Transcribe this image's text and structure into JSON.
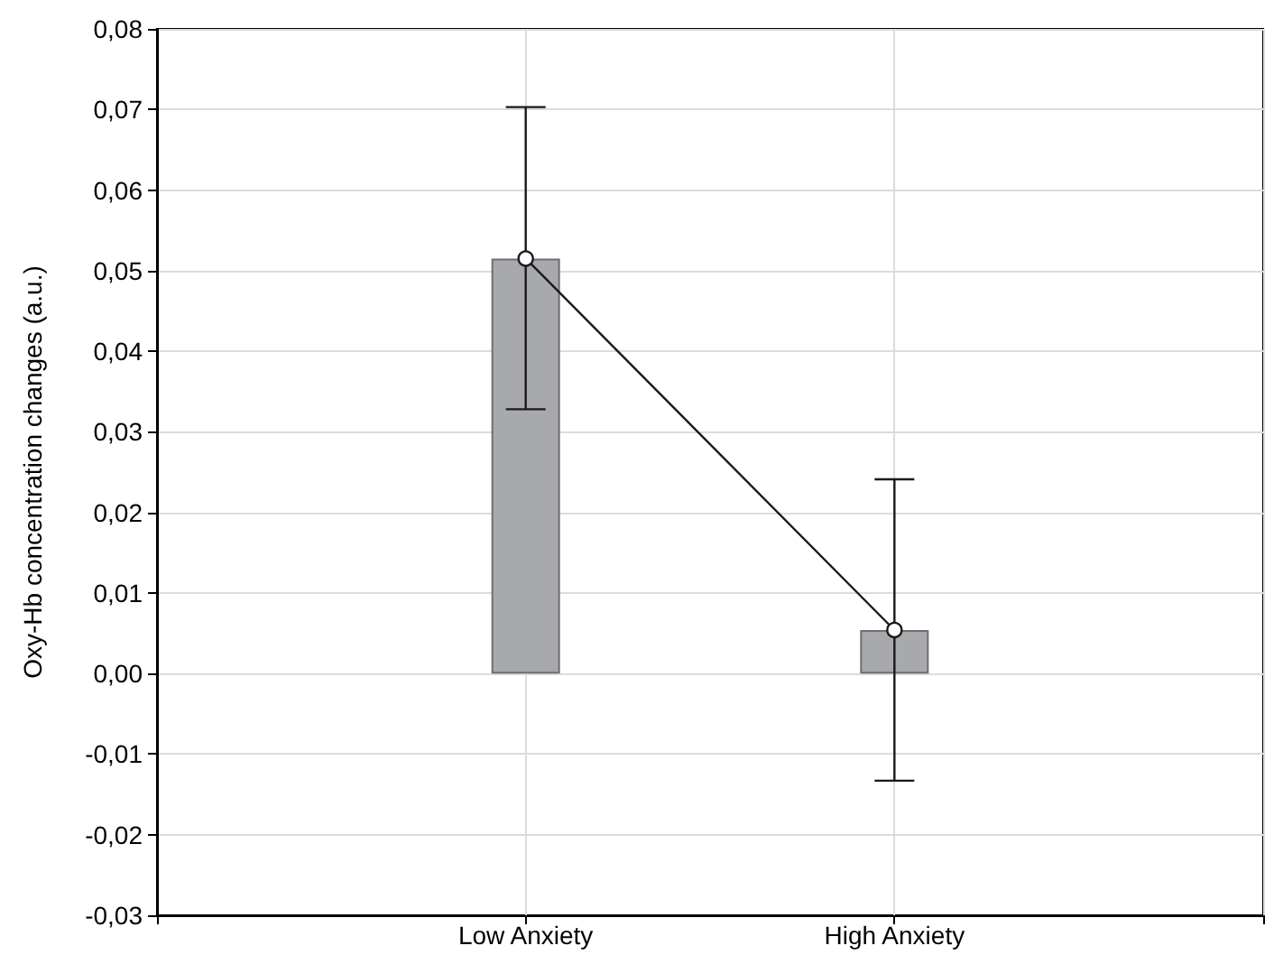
{
  "chart_data": {
    "type": "bar",
    "ylabel": "Oxy-Hb concentration changes (a.u.)",
    "categories": [
      "Low Anxiety",
      "High Anxiety"
    ],
    "series": [
      {
        "color": "#a8a9ad",
        "values": [
          0.0515,
          0.0054
        ]
      },
      {
        "type": "line",
        "color": "#1a1a1a",
        "values": [
          0.0515,
          0.0054
        ],
        "errors": [
          [
            0.0328,
            0.0703
          ],
          [
            -0.0133,
            0.0241
          ]
        ],
        "marker": "circle"
      }
    ],
    "ylim": [
      -0.03,
      0.08
    ],
    "yticks": [
      {
        "value": -0.03,
        "label": "-0,03"
      },
      {
        "value": -0.02,
        "label": "-0,02"
      },
      {
        "value": -0.01,
        "label": "-0,01"
      },
      {
        "value": 0,
        "label": "0,00"
      },
      {
        "value": 0.01,
        "label": "0,01"
      },
      {
        "value": 0.02,
        "label": "0,02"
      },
      {
        "value": 0.03,
        "label": "0,03"
      },
      {
        "value": 0.04,
        "label": "0,04"
      },
      {
        "value": 0.05,
        "label": "0,05"
      },
      {
        "value": 0.06,
        "label": "0,06"
      },
      {
        "value": 0.07,
        "label": "0,07"
      },
      {
        "value": 0.08,
        "label": "0,08"
      }
    ],
    "grid": true
  }
}
